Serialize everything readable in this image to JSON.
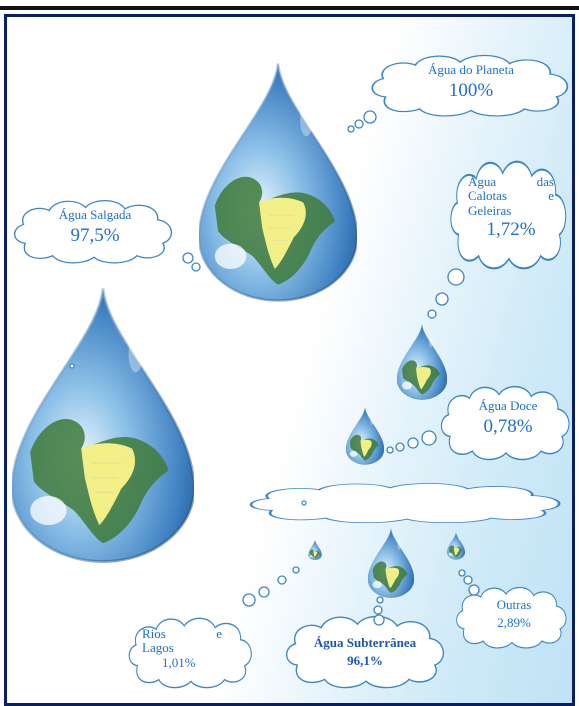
{
  "colors": {
    "frame": "#0a1f63",
    "label_text": "#1c6fd1",
    "cloud_stroke": "#3d86c6",
    "drop_water": "#3b7fc2",
    "land": "#3f7a3a",
    "highlight_region": "#f2ef86"
  },
  "nodes": {
    "planeta": {
      "name": "Água do Planeta",
      "value": "100%"
    },
    "salgada": {
      "name": "Água Salgada",
      "value": "97,5%"
    },
    "calotas": {
      "name_l1": "Água das",
      "name_l2": "Calotas e",
      "name_l3": "Geleiras",
      "value": "1,72%"
    },
    "doce": {
      "name": "Água Doce",
      "value": "0,78%"
    },
    "subterranea": {
      "name": "Água Subterrânea",
      "value": "96,1%"
    },
    "outras": {
      "name": "Outras",
      "value": "2,89%"
    },
    "rios": {
      "name_l1": "Rios e",
      "name_l2": "Lagos",
      "value": "1,01%"
    }
  }
}
